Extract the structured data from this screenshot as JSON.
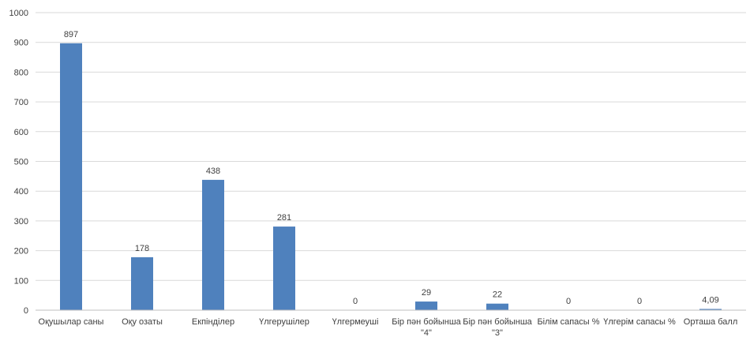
{
  "chart_data": {
    "type": "bar",
    "title": "",
    "xlabel": "",
    "ylabel": "",
    "categories": [
      "Оқушылар саны",
      "Оқу озаты",
      "Екпінділер",
      "Үлгерушілер",
      "Үлгермеуші",
      "Бір пән бойынша \"4\"",
      "Бір пән бойынша \"3\"",
      "Білім сапасы %",
      "Үлгерім сапасы %",
      "Орташа балл"
    ],
    "values": [
      897,
      178,
      438,
      281,
      0,
      29,
      22,
      0,
      0,
      4.09
    ],
    "value_labels": [
      "897",
      "178",
      "438",
      "281",
      "0",
      "29",
      "22",
      "0",
      "0",
      "4,09"
    ],
    "ylim": [
      0,
      1000
    ],
    "yticks": [
      0,
      100,
      200,
      300,
      400,
      500,
      600,
      700,
      800,
      900,
      1000
    ],
    "grid": true,
    "legend": "none",
    "bar_color": "#4f81bd"
  }
}
